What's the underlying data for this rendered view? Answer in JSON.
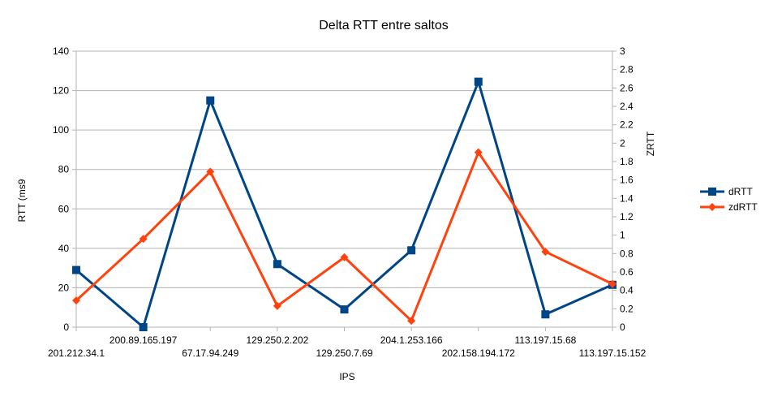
{
  "chart_data": {
    "type": "line",
    "title": "Delta RTT entre saltos",
    "xlabel": "IPS",
    "ylabel": "RTT (ms9",
    "y2label": "ZRTT",
    "ylim": [
      0,
      140
    ],
    "y2lim": [
      0,
      3
    ],
    "yticks": [
      "0",
      "20",
      "40",
      "60",
      "80",
      "100",
      "120",
      "140"
    ],
    "y2ticks": [
      "0",
      "0.2",
      "0.4",
      "0.6",
      "0.8",
      "1",
      "1.2",
      "1.4",
      "1.6",
      "1.8",
      "2",
      "2.2",
      "2.4",
      "2.6",
      "2.8",
      "3"
    ],
    "categories": [
      "201.212.34.1",
      "200.89.165.197",
      "67.17.94.249",
      "129.250.2.202",
      "129.250.7.69",
      "204.1.253.166",
      "202.158.194.172",
      "113.197.15.68",
      "113.197.15.152"
    ],
    "grid": "horizontal",
    "legend_position": "right",
    "series": [
      {
        "name": "dRTT",
        "axis": "left",
        "marker": "square",
        "color": "#004586",
        "values": [
          29,
          0,
          115,
          32,
          9,
          39,
          124.5,
          6.5,
          21.5
        ]
      },
      {
        "name": "zdRTT",
        "axis": "right",
        "marker": "diamond",
        "color": "#ff420e",
        "values": [
          0.29,
          0.96,
          1.69,
          0.23,
          0.76,
          0.07,
          1.9,
          0.82,
          0.47
        ]
      }
    ]
  }
}
